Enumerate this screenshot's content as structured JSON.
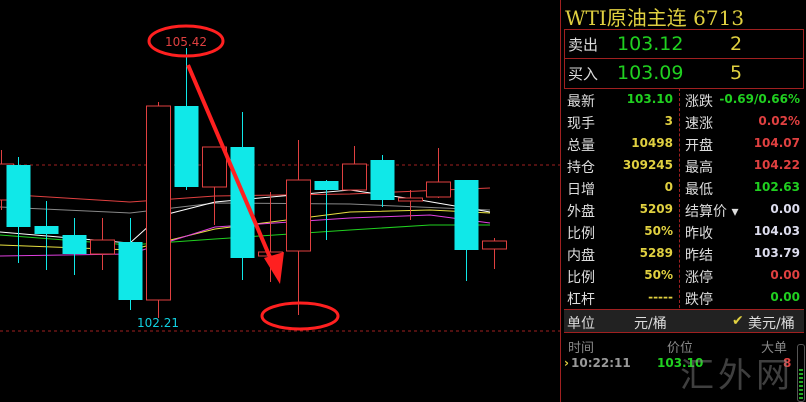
{
  "chart": {
    "high_label": "105.42",
    "low_label": "102.21",
    "colors": {
      "up": "#e04040",
      "down": "#10e8e8",
      "annotation": "#ff2020"
    }
  },
  "panel": {
    "title": "WTI原油主连  6713",
    "ask": {
      "label": "卖出",
      "price": "103.12",
      "volume": "2"
    },
    "bid": {
      "label": "买入",
      "price": "103.09",
      "volume": "5"
    },
    "stats": [
      {
        "l": "最新",
        "v": "103.10",
        "vc": "#20d020",
        "l2": "涨跌",
        "v2": "-0.69/0.66%",
        "v2c": "#20d020"
      },
      {
        "l": "现手",
        "v": "3",
        "vc": "#e0d040",
        "l2": "速涨",
        "v2": "0.02%",
        "v2c": "#e04040"
      },
      {
        "l": "总量",
        "v": "10498",
        "vc": "#e0d040",
        "l2": "开盘",
        "v2": "104.07",
        "v2c": "#e04040"
      },
      {
        "l": "持仓",
        "v": "309245",
        "vc": "#e0d040",
        "l2": "最高",
        "v2": "104.22",
        "v2c": "#e04040"
      },
      {
        "l": "日增",
        "v": "0",
        "vc": "#e0d040",
        "l2": "最低",
        "v2": "102.63",
        "v2c": "#20d020"
      },
      {
        "l": "外盘",
        "v": "5209",
        "vc": "#e0d040",
        "l2": "结算价 ▾",
        "v2": "0.00",
        "v2c": "#dde"
      },
      {
        "l": "比例",
        "v": "50%",
        "vc": "#e0d040",
        "l2": "昨收",
        "v2": "104.03",
        "v2c": "#dde"
      },
      {
        "l": "内盘",
        "v": "5289",
        "vc": "#e0d040",
        "l2": "昨结",
        "v2": "103.79",
        "v2c": "#dde"
      },
      {
        "l": "比例",
        "v": "50%",
        "vc": "#e0d040",
        "l2": "涨停",
        "v2": "0.00",
        "v2c": "#e04040"
      },
      {
        "l": "杠杆",
        "v": "-----",
        "vc": "#e0d040",
        "l2": "跌停",
        "v2": "0.00",
        "v2c": "#20d020"
      }
    ],
    "unit": {
      "label": "单位",
      "option1": "元/桶",
      "option2": "美元/桶",
      "check": "✔"
    },
    "ticks": {
      "headers": [
        "时间",
        "价位",
        "大单"
      ],
      "rows": [
        {
          "time": "10:22:11",
          "price": "103.10",
          "size": "8"
        }
      ]
    },
    "watermark": "汇外网"
  }
}
